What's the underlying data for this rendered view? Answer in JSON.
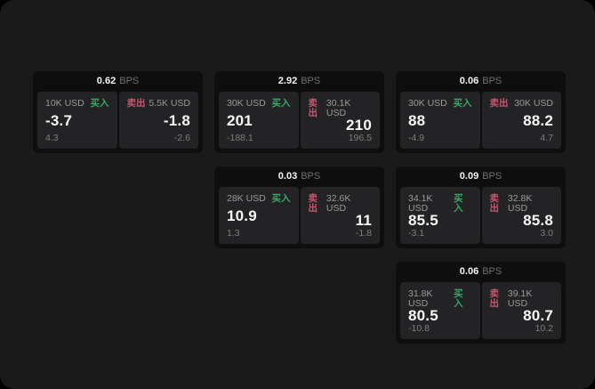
{
  "labels": {
    "bps_unit": "BPS",
    "buy": "买入",
    "sell": "卖出"
  },
  "colors": {
    "buy_green": "#36a865",
    "sell_red": "#c9556e",
    "frame_bg": "#1a1a1b",
    "card_bg": "#0e0e0f",
    "panel_bg": "#232325",
    "primary_text": "#f7f7f7",
    "muted_text": "#999999"
  },
  "cards": [
    {
      "bps": "0.62",
      "buy": {
        "amount": "10K USD",
        "value": "-3.7",
        "delta": "4.3"
      },
      "sell": {
        "amount": "5.5K USD",
        "value": "-1.8",
        "delta": "-2.6"
      }
    },
    {
      "bps": "2.92",
      "buy": {
        "amount": "30K USD",
        "value": "201",
        "delta": "-188.1"
      },
      "sell": {
        "amount": "30.1K USD",
        "value": "210",
        "delta": "196.5"
      }
    },
    {
      "bps": "0.06",
      "buy": {
        "amount": "30K USD",
        "value": "88",
        "delta": "-4.9"
      },
      "sell": {
        "amount": "30K USD",
        "value": "88.2",
        "delta": "4.7"
      }
    },
    {
      "bps": "0.03",
      "buy": {
        "amount": "28K USD",
        "value": "10.9",
        "delta": "1.3"
      },
      "sell": {
        "amount": "32.6K USD",
        "value": "11",
        "delta": "-1.8"
      }
    },
    {
      "bps": "0.09",
      "buy": {
        "amount": "34.1K USD",
        "value": "85.5",
        "delta": "-3.1"
      },
      "sell": {
        "amount": "32.8K USD",
        "value": "85.8",
        "delta": "3.0"
      }
    },
    {
      "bps": "0.06",
      "buy": {
        "amount": "31.8K USD",
        "value": "80.5",
        "delta": "-10.8"
      },
      "sell": {
        "amount": "39.1K USD",
        "value": "80.7",
        "delta": "10.2"
      }
    }
  ]
}
